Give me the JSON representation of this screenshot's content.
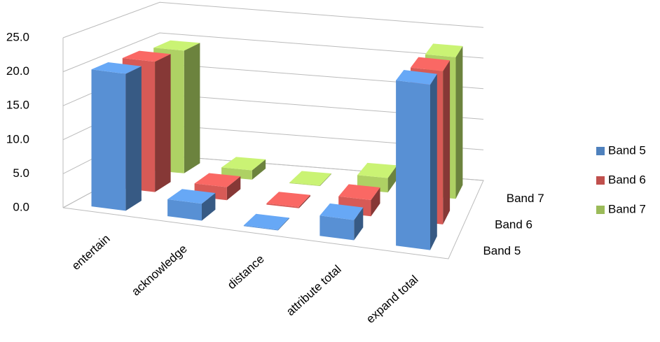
{
  "chart_data": {
    "type": "bar3d",
    "categories": [
      "entertain",
      "acknowledge",
      "distance",
      "attribute total",
      "expand total"
    ],
    "series": [
      {
        "name": "Band 5",
        "color": "#4f81bd",
        "values": [
          20.3,
          2.5,
          0.1,
          3.0,
          24.5
        ]
      },
      {
        "name": "Band 6",
        "color": "#c0504d",
        "values": [
          20.0,
          2.0,
          0.2,
          2.5,
          23.5
        ]
      },
      {
        "name": "Band 7",
        "color": "#9bbb59",
        "values": [
          19.5,
          1.5,
          0.1,
          2.3,
          22.5
        ]
      }
    ],
    "ylim": [
      0,
      25
    ],
    "yticks": [
      {
        "value": 0,
        "label": "0.0"
      },
      {
        "value": 5,
        "label": "5.0"
      },
      {
        "value": 10,
        "label": "10.0"
      },
      {
        "value": 15,
        "label": "15.0"
      },
      {
        "value": 20,
        "label": "20.0"
      },
      {
        "value": 25,
        "label": "25.0"
      }
    ],
    "grid": true,
    "legend": "right"
  }
}
